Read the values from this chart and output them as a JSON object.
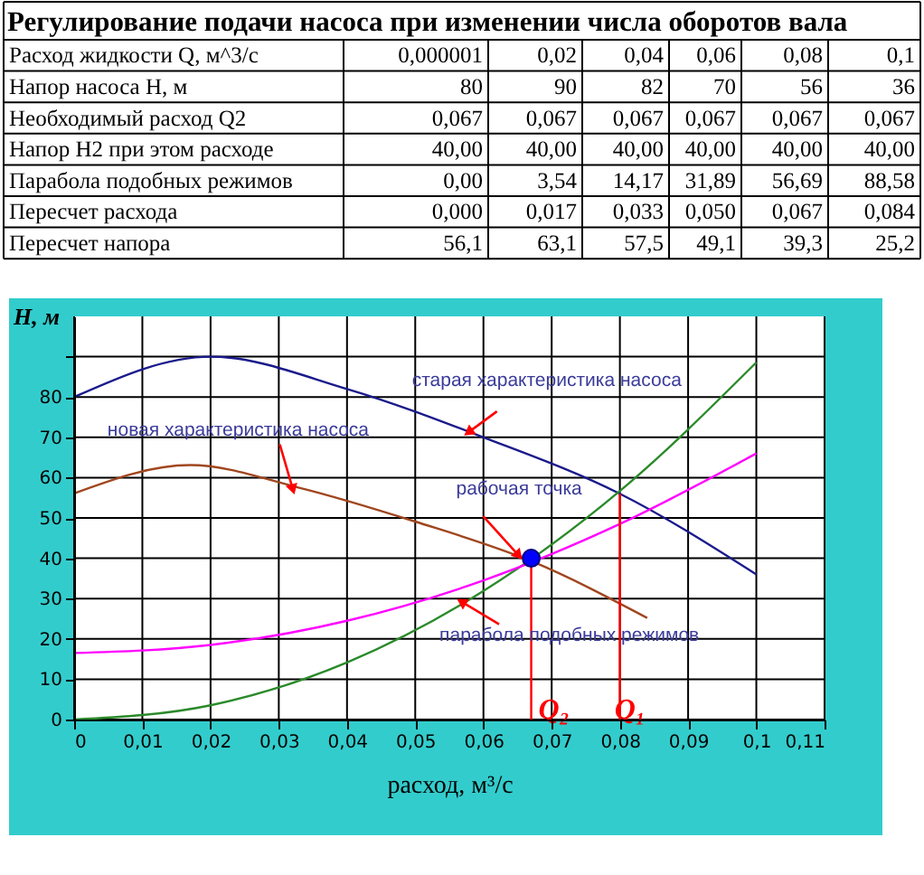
{
  "chart_data": [
    {
      "type": "other",
      "title": "Регулирование подачи насоса при изменении числа оборотов вала",
      "annotations": [
        "Расход жидкости Q, м^3/с",
        "0,000001",
        "0,02",
        "0,04",
        "0,06",
        "0,08",
        "0,1",
        "Напор насоса H, м",
        "80",
        "90",
        "82",
        "70",
        "56",
        "36",
        "Необходимый расход Q2",
        "0,067",
        "0,067",
        "0,067",
        "0,067",
        "0,067",
        "0,067",
        "Напор H2 при этом расходе",
        "40,00",
        "40,00",
        "40,00",
        "40,00",
        "40,00",
        "40,00",
        "Парабола подобных режимов",
        "0,00",
        "3,54",
        "14,17",
        "31,89",
        "56,69",
        "88,58",
        "Пересчет расхода",
        "0,000",
        "0,017",
        "0,033",
        "0,050",
        "0,067",
        "0,084",
        "Пересчет напора",
        "56,1",
        "63,1",
        "57,5",
        "49,1",
        "39,3",
        "25,2"
      ]
    },
    {
      "type": "line",
      "xlabel": "расход, м³/с",
      "ylabel": "H, м",
      "xlim": [
        0,
        0.11
      ],
      "ylim": [
        0,
        100
      ],
      "xticks": [
        0,
        {
          "value": 0.01,
          "label": "0,01"
        },
        {
          "value": 0.02,
          "label": "0,02"
        },
        {
          "value": 0.03,
          "label": "0,03"
        },
        {
          "value": 0.04,
          "label": "0,04"
        },
        {
          "value": 0.05,
          "label": "0,05"
        },
        {
          "value": 0.06,
          "label": "0,06"
        },
        {
          "value": 0.07,
          "label": "0,07"
        },
        {
          "value": 0.08,
          "label": "0,08"
        },
        {
          "value": 0.09,
          "label": "0,09"
        },
        {
          "value": 0.1,
          "label": "0,1"
        },
        {
          "value": 0.11,
          "label": "0,11"
        }
      ],
      "yticks": [
        0,
        10,
        20,
        30,
        40,
        50,
        60,
        70,
        80,
        {
          "value": 90,
          "label": null
        }
      ],
      "grid": true,
      "marker": "none",
      "line_style": "solid",
      "series": [
        {
          "x": [
            1e-06,
            0.02,
            0.04,
            0.06,
            0.08,
            0.1
          ],
          "values": [
            80,
            90,
            82,
            70,
            56,
            36
          ],
          "color": "#1a1a8c"
        },
        {
          "x": [
            0,
            0.017,
            0.033,
            0.05,
            0.067,
            0.084
          ],
          "values": [
            56.1,
            63.1,
            57.5,
            49.1,
            39.3,
            25.2
          ],
          "color": "#a0461e"
        },
        {
          "x": [
            0,
            0.02,
            0.04,
            0.06,
            0.08,
            0.1
          ],
          "values": [
            0,
            3.54,
            14.17,
            31.89,
            56.69,
            88.58
          ],
          "color": "#2a8a2a"
        },
        {
          "x": [
            0,
            0.02,
            0.04,
            0.06,
            0.08,
            0.1
          ],
          "values": [
            16.5,
            18.5,
            24.5,
            34.5,
            48.5,
            66
          ],
          "color": "#ff00ff"
        },
        {
          "x": [
            0.067,
            0.067
          ],
          "values": [
            0,
            40
          ],
          "color": "#ff0000"
        },
        {
          "x": [
            0.08,
            0.08
          ],
          "values": [
            0,
            56
          ],
          "color": "#ff0000"
        },
        {
          "type": "scatter",
          "marker": "circle",
          "x": [
            0.067
          ],
          "values": [
            40
          ],
          "color": "#0000ff"
        }
      ],
      "annotations": [
        {
          "text": "старая характеристика насоса",
          "x": 0.058,
          "y": 71.5
        },
        {
          "text": "новая характеристика насоса",
          "x": 0.032,
          "y": 57.5
        },
        {
          "text": "рабочая точка",
          "x": 0.065,
          "y": 41
        },
        {
          "text": "парабола подобных режимов",
          "x": 0.057,
          "y": 29
        },
        {
          "text": "Q₂",
          "x": 0.067,
          "y": 6
        },
        {
          "text": "Q₁",
          "x": 0.08,
          "y": 6
        }
      ]
    }
  ]
}
